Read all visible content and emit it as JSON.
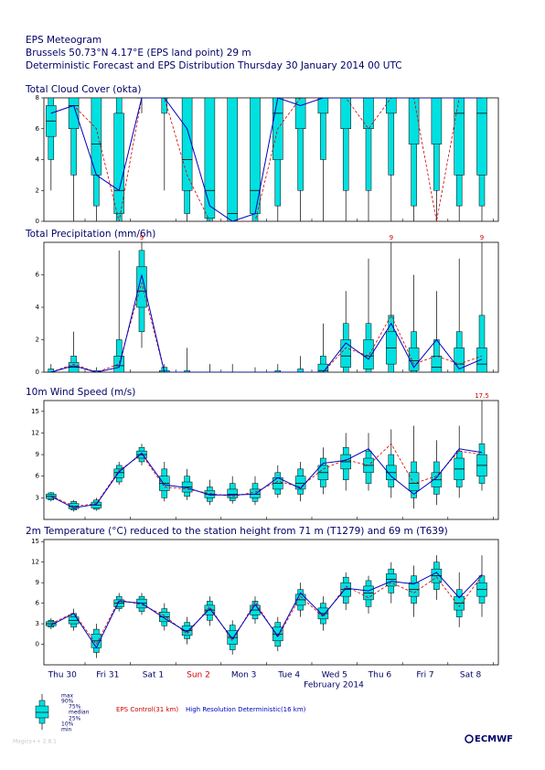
{
  "header": {
    "title": "EPS Meteogram",
    "location": "Brussels 50.73°N 4.17°E (EPS land point) 29 m",
    "subtitle": "Deterministic Forecast and EPS Distribution Thursday 30 January 2014 00 UTC"
  },
  "days": [
    "Thu 30",
    "Fri 31",
    "Sat  1",
    "Sun  2",
    "Mon  3",
    "Tue  4",
    "Wed  5",
    "Thu  6",
    "Fri  7",
    "Sat  8"
  ],
  "day_colors": [
    "#000066",
    "#000066",
    "#000066",
    "#d00000",
    "#000066",
    "#000066",
    "#000066",
    "#000066",
    "#000066",
    "#000066"
  ],
  "month_label": "February 2014",
  "box_color": "#00e0e0",
  "legend": {
    "labels": [
      "max",
      "90%",
      "75%",
      "median",
      "25%",
      "10%",
      "min"
    ]
  },
  "deterministic": [
    {
      "name": "EPS Control(31 km)",
      "color": "#d00000"
    },
    {
      "name": "High Resolution Deterministic(16 km)",
      "color": "#0000c0"
    }
  ],
  "footer": {
    "software": "Magics++ 2.8.1",
    "logo": "ECMWF"
  },
  "chart_data": [
    {
      "type": "boxplot",
      "title": "Total Cloud Cover (okta)",
      "ylim": [
        0,
        8
      ],
      "yticks": [
        0,
        2,
        4,
        6,
        8
      ],
      "stats": {
        "max": [
          8,
          8,
          8,
          8,
          8,
          8,
          8,
          8,
          8,
          8,
          8,
          8,
          8,
          8,
          8,
          8,
          8,
          8,
          8,
          8
        ],
        "p90": [
          8,
          8,
          8,
          8,
          8,
          8,
          8,
          8,
          8,
          8,
          8,
          8,
          8,
          8,
          8,
          8,
          8,
          8,
          8,
          8
        ],
        "p75": [
          7.5,
          8,
          8,
          7,
          8,
          8,
          8,
          8,
          8,
          8,
          8,
          8,
          8,
          8,
          8,
          8,
          8,
          8,
          8,
          8
        ],
        "median": [
          6.5,
          7.5,
          5,
          2,
          8,
          8,
          4,
          2,
          0.5,
          2,
          7,
          8,
          8,
          8,
          8,
          8,
          8,
          8,
          7,
          7
        ],
        "p25": [
          5.5,
          6,
          3,
          0.5,
          8,
          8,
          2,
          0.2,
          0,
          0.5,
          4,
          6,
          7,
          6,
          6,
          7,
          5,
          5,
          3,
          3
        ],
        "p10": [
          4,
          3,
          1,
          0,
          8,
          7,
          0.5,
          0,
          0,
          0,
          1,
          2,
          4,
          2,
          2,
          3,
          1,
          2,
          1,
          1
        ],
        "min": [
          2,
          0,
          0,
          0,
          7,
          2,
          0,
          0,
          0,
          0,
          0,
          0,
          0,
          0,
          0,
          0,
          0,
          0,
          0,
          0
        ]
      },
      "control": [
        7,
        7.5,
        6,
        0,
        8,
        8,
        3,
        0,
        0,
        0,
        6,
        8,
        8,
        8,
        6,
        8,
        8,
        0,
        8,
        8
      ],
      "hres": [
        7,
        7.5,
        3,
        2,
        8,
        8,
        6,
        1,
        0,
        0.5,
        8,
        7.5,
        8,
        8,
        8,
        8,
        8,
        8,
        8,
        8
      ]
    },
    {
      "type": "boxplot",
      "title": "Total Precipitation (mm/6h)",
      "ylim": [
        0,
        8
      ],
      "yticks": [
        0,
        2,
        4,
        6
      ],
      "stats": {
        "max": [
          0.5,
          2.5,
          0.3,
          7.5,
          9,
          0.5,
          1.5,
          0.5,
          0.5,
          0.3,
          0.5,
          1,
          3,
          5,
          7,
          9,
          6,
          5,
          7,
          9
        ],
        "p90": [
          0.2,
          1,
          0.1,
          2,
          7.5,
          0.3,
          0.1,
          0,
          0,
          0,
          0.1,
          0.2,
          1,
          3,
          3,
          3.5,
          2.5,
          2,
          2.5,
          3.5
        ],
        "p75": [
          0,
          0.6,
          0,
          1,
          6.5,
          0.1,
          0,
          0,
          0,
          0,
          0,
          0,
          0.5,
          2,
          2,
          2.5,
          1.5,
          1,
          1.5,
          1.5
        ],
        "median": [
          0,
          0.3,
          0,
          0.4,
          5,
          0,
          0,
          0,
          0,
          0,
          0,
          0,
          0.1,
          1,
          1,
          1.5,
          0.7,
          0.3,
          0.5,
          0.5
        ],
        "p25": [
          0,
          0,
          0,
          0,
          4,
          0,
          0,
          0,
          0,
          0,
          0,
          0,
          0,
          0.3,
          0.2,
          0.5,
          0.1,
          0,
          0,
          0
        ],
        "p10": [
          0,
          0,
          0,
          0,
          2.5,
          0,
          0,
          0,
          0,
          0,
          0,
          0,
          0,
          0,
          0,
          0,
          0,
          0,
          0,
          0
        ],
        "min": [
          0,
          0,
          0,
          0,
          1.5,
          0,
          0,
          0,
          0,
          0,
          0,
          0,
          0,
          0,
          0,
          0,
          0,
          0,
          0,
          0
        ]
      },
      "control": [
        0,
        0.5,
        0,
        0.5,
        5.5,
        0,
        0,
        0,
        0,
        0,
        0,
        0,
        0,
        1.5,
        1,
        3.5,
        0.5,
        1,
        0.5,
        1
      ],
      "hres": [
        0,
        0.4,
        0,
        0.3,
        6,
        0,
        0,
        0,
        0,
        0,
        0,
        0,
        0,
        1.8,
        0.8,
        3,
        0.3,
        2,
        0.2,
        0.8
      ]
    },
    {
      "type": "boxplot",
      "title": "10m Wind Speed (m/s)",
      "ylim": [
        0,
        16.5
      ],
      "yticks": [
        3,
        6,
        9,
        12,
        15
      ],
      "stats": {
        "max": [
          3.8,
          2.7,
          3,
          8,
          10.5,
          8,
          7,
          5.5,
          6,
          6,
          7.5,
          8,
          10,
          12,
          12,
          12.5,
          13,
          11,
          13,
          17.5
        ],
        "p90": [
          3.7,
          2.5,
          2.7,
          7.5,
          10,
          7,
          6,
          4.5,
          5,
          5,
          6.5,
          7,
          8.5,
          10,
          9.5,
          9,
          8,
          8,
          9.5,
          10.5
        ],
        "p75": [
          3.5,
          2.2,
          2.4,
          7,
          9.5,
          6,
          5.2,
          4,
          4.2,
          4.2,
          5.8,
          6,
          7.5,
          9,
          8.5,
          7.5,
          6.5,
          6.5,
          8.5,
          9
        ],
        "median": [
          3.2,
          1.8,
          2,
          6.5,
          9,
          5,
          4.5,
          3.5,
          3.5,
          3.5,
          5,
          5,
          6.5,
          8,
          7.5,
          6.5,
          5,
          5.5,
          7,
          7.5
        ],
        "p25": [
          2.9,
          1.5,
          1.6,
          5.8,
          8.5,
          4,
          3.8,
          3,
          3,
          3,
          4.2,
          4.2,
          5.5,
          7,
          6.5,
          5.5,
          4,
          4.5,
          5.5,
          6
        ],
        "p10": [
          2.7,
          1.3,
          1.4,
          5.2,
          8,
          3,
          3.2,
          2.5,
          2.6,
          2.5,
          3.5,
          3.5,
          4.5,
          5.5,
          5,
          4.5,
          3,
          3.5,
          4.5,
          5
        ],
        "min": [
          2.5,
          1.1,
          1.2,
          4.8,
          7.5,
          2.5,
          2.7,
          2,
          2.2,
          2,
          3,
          2.5,
          3.5,
          4,
          4,
          3,
          1.5,
          2,
          3,
          4
        ]
      },
      "control": [
        3.3,
        1.8,
        2.2,
        6.8,
        9,
        4.5,
        4.2,
        3.6,
        3.2,
        3.8,
        5.3,
        4.5,
        7,
        8.3,
        7.5,
        10.5,
        5,
        6,
        9.5,
        9
      ],
      "hres": [
        3.2,
        1.6,
        2.1,
        6.6,
        9.2,
        4.8,
        4.4,
        3.4,
        3.4,
        3.5,
        5.8,
        4.3,
        7.8,
        8.2,
        9.8,
        6,
        3.5,
        5.8,
        9.8,
        9.3
      ]
    },
    {
      "type": "boxplot",
      "title": "2m Temperature  (°C) reduced to the station height from 71 m (T1279) and 69 m (T639)",
      "ylim": [
        -3,
        15.3
      ],
      "yticks": [
        0,
        3,
        6,
        9,
        12,
        15
      ],
      "stats": {
        "max": [
          3.8,
          5.2,
          3,
          7.5,
          7.5,
          6,
          4,
          7,
          3.5,
          7,
          4,
          9,
          7,
          10.5,
          10,
          12,
          11.5,
          13,
          10.5,
          13
        ],
        "p90": [
          3.5,
          4.5,
          2.2,
          7,
          7,
          5.2,
          3.2,
          6.3,
          2.8,
          6.3,
          3.2,
          8,
          6,
          9.8,
          9.3,
          11,
          10,
          12,
          8,
          10
        ],
        "p75": [
          3.3,
          4,
          1.5,
          6.5,
          6.6,
          4.7,
          2.7,
          5.7,
          2,
          5.7,
          2.5,
          7.3,
          5.3,
          9,
          8.5,
          10.3,
          9,
          11,
          7,
          9
        ],
        "median": [
          3,
          3.5,
          0.5,
          6,
          6,
          4,
          2,
          5,
          1,
          5,
          1.5,
          6.5,
          4.5,
          8,
          7.5,
          9.5,
          8,
          10,
          6,
          8
        ],
        "p25": [
          2.7,
          3,
          -0.5,
          5.5,
          5.3,
          3.3,
          1.3,
          4.3,
          0,
          4.3,
          0.5,
          5.7,
          3.7,
          7,
          6.5,
          8.5,
          7,
          9,
          5,
          7
        ],
        "p10": [
          2.5,
          2.5,
          -1.2,
          5.2,
          4.8,
          2.7,
          0.8,
          3.5,
          -0.8,
          3.7,
          -0.3,
          5,
          3,
          6,
          5.5,
          7.5,
          6,
          8,
          4,
          6
        ],
        "min": [
          2.2,
          2,
          -2,
          4.8,
          4.3,
          2,
          0,
          2.7,
          -1.5,
          3,
          -1,
          4,
          2,
          5,
          4.5,
          6,
          4,
          6.5,
          2.5,
          4
        ]
      },
      "control": [
        3,
        4.6,
        0,
        6.5,
        5.8,
        4.2,
        1.5,
        5.5,
        0.5,
        6.2,
        1,
        7,
        4,
        8.5,
        6.8,
        9,
        7.5,
        9.8,
        5.5,
        10
      ],
      "hres": [
        2.8,
        4.5,
        -0.5,
        6.3,
        6,
        3.8,
        1.8,
        5.2,
        0.8,
        5.8,
        1.2,
        7.5,
        4.2,
        8.2,
        7.8,
        9.2,
        8.8,
        10.5,
        6.8,
        10.2
      ]
    }
  ]
}
